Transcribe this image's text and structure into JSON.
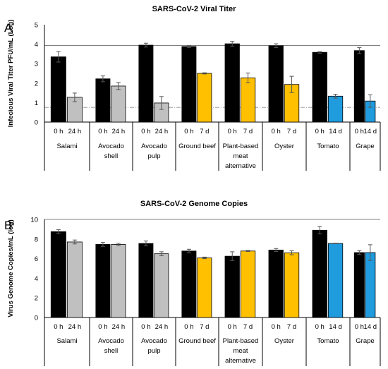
{
  "chart_data": [
    {
      "type": "bar",
      "panel_label": "A",
      "title": "SARS-CoV-2 Viral Titer",
      "ylabel": "Infecious Viral Titer PFU/mL (Log)",
      "xlabel": "",
      "ylim": [
        0,
        5
      ],
      "yticks": [
        0,
        1,
        2,
        3,
        4,
        5
      ],
      "reference_lines": [
        {
          "value": 3.93,
          "style": "solid",
          "color": "#808080"
        },
        {
          "value": 0.75,
          "style": "dash-dot",
          "color": "#a0a0a0"
        }
      ],
      "categories": [
        "Salami",
        "Avocado shell",
        "Avocado pulp",
        "Ground beef",
        "Plant-based meat alternative",
        "Oyster",
        "Tomato",
        "Grape"
      ],
      "category_lines": [
        [
          "Salami"
        ],
        [
          "Avocado",
          "shell"
        ],
        [
          "Avocado",
          "pulp"
        ],
        [
          "Ground beef"
        ],
        [
          "Plant-based",
          "meat",
          "alternative"
        ],
        [
          "Oyster"
        ],
        [
          "Tomato"
        ],
        [
          "Grape"
        ]
      ],
      "time_labels": [
        [
          "0 h",
          "24 h"
        ],
        [
          "0 h",
          "24 h"
        ],
        [
          "0 h",
          "24 h"
        ],
        [
          "0 h",
          "7 d"
        ],
        [
          "0 h",
          "7 d"
        ],
        [
          "0 h",
          "7 d"
        ],
        [
          "0 h",
          "14 d"
        ],
        [
          "0 h",
          "14 d"
        ]
      ],
      "colors": [
        "#000000",
        "#c0c0c0",
        "#ffc000",
        "#1f9bde"
      ],
      "groups": [
        {
          "values": [
            3.35,
            1.27
          ],
          "errors": [
            0.27,
            0.22
          ],
          "colors": [
            0,
            1
          ]
        },
        {
          "values": [
            2.22,
            1.85
          ],
          "errors": [
            0.15,
            0.18
          ],
          "colors": [
            0,
            1
          ]
        },
        {
          "values": [
            3.95,
            0.98
          ],
          "errors": [
            0.1,
            0.33
          ],
          "colors": [
            0,
            1
          ]
        },
        {
          "values": [
            3.88,
            2.5
          ],
          "errors": [
            0.05,
            0.03
          ],
          "colors": [
            0,
            2
          ]
        },
        {
          "values": [
            4.02,
            2.27
          ],
          "errors": [
            0.12,
            0.25
          ],
          "colors": [
            0,
            2
          ]
        },
        {
          "values": [
            3.92,
            1.93
          ],
          "errors": [
            0.1,
            0.42
          ],
          "colors": [
            0,
            2
          ]
        },
        {
          "values": [
            3.58,
            1.33
          ],
          "errors": [
            0.04,
            0.1
          ],
          "colors": [
            0,
            3
          ]
        },
        {
          "values": [
            3.67,
            1.08
          ],
          "errors": [
            0.15,
            0.32
          ],
          "colors": [
            0,
            3
          ]
        }
      ]
    },
    {
      "type": "bar",
      "panel_label": "B",
      "title": "SARS-CoV-2 Genome Copies",
      "ylabel": "Virus Genome Copies/mL (log)",
      "xlabel": "",
      "ylim": [
        0,
        10
      ],
      "yticks": [
        0,
        2,
        4,
        6,
        8,
        10
      ],
      "reference_lines": [
        {
          "value": 10,
          "style": "solid",
          "color": "#808080"
        }
      ],
      "categories": [
        "Salami",
        "Avocado shell",
        "Avocado pulp",
        "Ground beef",
        "Plant-based meat alternative",
        "Oyster",
        "Tomato",
        "Grape"
      ],
      "category_lines": [
        [
          "Salami"
        ],
        [
          "Avocado",
          "shell"
        ],
        [
          "Avocado",
          "pulp"
        ],
        [
          "Ground beef"
        ],
        [
          "Plant-based",
          "meat",
          "alternative"
        ],
        [
          "Oyster"
        ],
        [
          "Tomato"
        ],
        [
          "Grape"
        ]
      ],
      "time_labels": [
        [
          "0 h",
          "24 h"
        ],
        [
          "0 h",
          "24 h"
        ],
        [
          "0 h",
          "24 h"
        ],
        [
          "0 h",
          "7 d"
        ],
        [
          "0 h",
          "7 d"
        ],
        [
          "0 h",
          "7 d"
        ],
        [
          "0 h",
          "14 d"
        ],
        [
          "0 h",
          "14 d"
        ]
      ],
      "colors": [
        "#000000",
        "#c0c0c0",
        "#ffc000",
        "#1f9bde"
      ],
      "groups": [
        {
          "values": [
            8.75,
            7.7
          ],
          "errors": [
            0.2,
            0.2
          ],
          "colors": [
            0,
            1
          ]
        },
        {
          "values": [
            7.45,
            7.45
          ],
          "errors": [
            0.2,
            0.12
          ],
          "colors": [
            0,
            1
          ]
        },
        {
          "values": [
            7.55,
            6.5
          ],
          "errors": [
            0.25,
            0.2
          ],
          "colors": [
            0,
            1
          ]
        },
        {
          "values": [
            6.78,
            6.08
          ],
          "errors": [
            0.18,
            0.08
          ],
          "colors": [
            0,
            2
          ]
        },
        {
          "values": [
            6.25,
            6.78
          ],
          "errors": [
            0.45,
            0.05
          ],
          "colors": [
            0,
            2
          ]
        },
        {
          "values": [
            6.88,
            6.6
          ],
          "errors": [
            0.15,
            0.2
          ],
          "colors": [
            0,
            2
          ]
        },
        {
          "values": [
            8.9,
            7.55
          ],
          "errors": [
            0.38,
            0.03
          ],
          "colors": [
            0,
            3
          ]
        },
        {
          "values": [
            6.62,
            6.62
          ],
          "errors": [
            0.2,
            0.8
          ],
          "colors": [
            0,
            3
          ]
        }
      ]
    }
  ]
}
